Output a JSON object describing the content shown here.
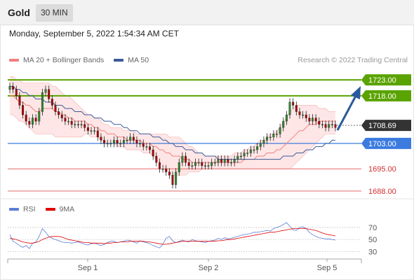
{
  "header": {
    "symbol": "Gold",
    "timeframe": "30 MIN"
  },
  "datetime": "Monday, September 5, 2022 1:54:34 AM CET",
  "legend": {
    "items": [
      {
        "label": "MA 20 + Bollinger Bands",
        "color": "#f08080"
      },
      {
        "label": "MA 50",
        "color": "#3a5a9a"
      }
    ],
    "credit": "Research © 2022 Trading Central"
  },
  "rsi_legend": {
    "items": [
      {
        "label": "RSI",
        "color": "#5b7fd6"
      },
      {
        "label": "9MA",
        "color": "#e00000"
      }
    ]
  },
  "colors": {
    "up_candle": "#2e8b2e",
    "down_candle": "#b00000",
    "resistance": "#5aa300",
    "support": "#3b7be0",
    "minor_support": "#e05050",
    "bollinger_fill": "#ffd6d6",
    "ma20": "#f08080",
    "ma50": "#3a5a9a",
    "arrow": "#2a5a9a",
    "current_price_bg": "#333333"
  },
  "chart_data": [
    {
      "type": "candlestick",
      "ylim": [
        1686,
        1727
      ],
      "levels": [
        {
          "value": 1723.0,
          "label": "1723.00",
          "kind": "resistance"
        },
        {
          "value": 1718.0,
          "label": "1718.00",
          "kind": "resistance"
        },
        {
          "value": 1708.69,
          "label": "1708.69",
          "kind": "current"
        },
        {
          "value": 1703.0,
          "label": "1703.00",
          "kind": "support"
        },
        {
          "value": 1695.0,
          "label": "1695.00",
          "kind": "minor_support"
        },
        {
          "value": 1688.0,
          "label": "1688.00",
          "kind": "minor_support"
        }
      ],
      "x_ticks": [
        "Sep 1",
        "Sep 2",
        "Sep 5"
      ],
      "close": [
        1721,
        1720,
        1718,
        1715,
        1712,
        1710,
        1709,
        1711,
        1710,
        1713,
        1719,
        1720,
        1717,
        1715,
        1713,
        1712,
        1711,
        1710,
        1710,
        1709,
        1709,
        1709,
        1709,
        1708,
        1707,
        1707,
        1707,
        1705,
        1704,
        1703,
        1703,
        1703,
        1704,
        1703,
        1703,
        1704,
        1704,
        1705,
        1704,
        1703,
        1703,
        1702,
        1702,
        1701,
        1699,
        1697,
        1695,
        1695,
        1694,
        1693,
        1690,
        1694,
        1697,
        1699,
        1697,
        1696,
        1696,
        1697,
        1697,
        1696,
        1696,
        1696,
        1697,
        1697,
        1698,
        1697,
        1698,
        1697,
        1697,
        1698,
        1699,
        1699,
        1700,
        1700,
        1701,
        1701,
        1702,
        1703,
        1704,
        1705,
        1705,
        1706,
        1706,
        1708,
        1710,
        1712,
        1716,
        1715,
        1713,
        1712,
        1712,
        1711,
        1710,
        1711,
        1710,
        1709,
        1709,
        1708,
        1709,
        1709,
        1708
      ],
      "ma20": [
        1718,
        1718,
        1717,
        1716,
        1716,
        1715,
        1715,
        1714,
        1713,
        1713,
        1714,
        1714,
        1714,
        1714,
        1713,
        1713,
        1712,
        1712,
        1711,
        1711,
        1710,
        1710,
        1710,
        1710,
        1709,
        1709,
        1708,
        1708,
        1707,
        1707,
        1706,
        1706,
        1706,
        1705,
        1705,
        1705,
        1704,
        1704,
        1704,
        1704,
        1704,
        1703,
        1703,
        1703,
        1702,
        1702,
        1701,
        1701,
        1700,
        1700,
        1699,
        1699,
        1699,
        1698,
        1698,
        1698,
        1697,
        1697,
        1697,
        1697,
        1697,
        1697,
        1697,
        1697,
        1697,
        1697,
        1697,
        1697,
        1697,
        1697,
        1697,
        1697,
        1698,
        1698,
        1698,
        1698,
        1699,
        1699,
        1699,
        1700,
        1700,
        1700,
        1701,
        1701,
        1702,
        1703,
        1704,
        1705,
        1706,
        1707,
        1707,
        1708,
        1709,
        1709,
        1709,
        1710,
        1710,
        1710,
        1710,
        1710,
        1710
      ],
      "bb_upper": [
        1724,
        1724,
        1723,
        1723,
        1722,
        1722,
        1722,
        1722,
        1722,
        1722,
        1722,
        1722,
        1722,
        1721,
        1721,
        1720,
        1719,
        1718,
        1718,
        1717,
        1716,
        1715,
        1714,
        1713,
        1712,
        1712,
        1711,
        1711,
        1710,
        1709,
        1709,
        1708,
        1708,
        1708,
        1708,
        1707,
        1707,
        1707,
        1707,
        1706,
        1706,
        1706,
        1706,
        1706,
        1706,
        1706,
        1706,
        1706,
        1706,
        1705,
        1705,
        1705,
        1705,
        1704,
        1703,
        1702,
        1702,
        1701,
        1700,
        1700,
        1699,
        1699,
        1699,
        1699,
        1699,
        1699,
        1699,
        1699,
        1699,
        1700,
        1700,
        1700,
        1701,
        1701,
        1702,
        1702,
        1703,
        1704,
        1704,
        1705,
        1706,
        1706,
        1707,
        1708,
        1710,
        1711,
        1713,
        1714,
        1715,
        1715,
        1715,
        1715,
        1715,
        1715,
        1715,
        1714,
        1714,
        1714,
        1713,
        1713,
        1713
      ],
      "bb_lower": [
        1712,
        1712,
        1711,
        1710,
        1710,
        1709,
        1708,
        1707,
        1706,
        1706,
        1706,
        1706,
        1706,
        1706,
        1705,
        1705,
        1705,
        1705,
        1705,
        1705,
        1705,
        1705,
        1705,
        1706,
        1706,
        1705,
        1705,
        1705,
        1704,
        1704,
        1703,
        1703,
        1703,
        1702,
        1702,
        1702,
        1701,
        1701,
        1701,
        1701,
        1701,
        1700,
        1700,
        1700,
        1699,
        1698,
        1697,
        1696,
        1695,
        1694,
        1693,
        1693,
        1693,
        1693,
        1693,
        1694,
        1694,
        1694,
        1694,
        1695,
        1695,
        1695,
        1695,
        1695,
        1695,
        1695,
        1695,
        1695,
        1695,
        1695,
        1695,
        1695,
        1695,
        1695,
        1695,
        1695,
        1695,
        1695,
        1695,
        1695,
        1695,
        1695,
        1695,
        1695,
        1695,
        1695,
        1695,
        1696,
        1697,
        1698,
        1699,
        1700,
        1701,
        1702,
        1703,
        1704,
        1705,
        1706,
        1706,
        1706,
        1706
      ],
      "ma50": [
        1721,
        1721,
        1720,
        1720,
        1719,
        1719,
        1718,
        1718,
        1717,
        1717,
        1717,
        1716,
        1716,
        1716,
        1715,
        1715,
        1715,
        1714,
        1714,
        1714,
        1713,
        1713,
        1713,
        1712,
        1712,
        1712,
        1711,
        1711,
        1711,
        1710,
        1710,
        1710,
        1709,
        1709,
        1709,
        1708,
        1708,
        1707,
        1707,
        1707,
        1706,
        1706,
        1706,
        1706,
        1705,
        1705,
        1705,
        1704,
        1704,
        1703,
        1703,
        1702,
        1702,
        1702,
        1701,
        1701,
        1701,
        1700,
        1700,
        1700,
        1699,
        1699,
        1699,
        1699,
        1698,
        1698,
        1698,
        1698,
        1698,
        1698,
        1698,
        1698,
        1698,
        1698,
        1698,
        1698,
        1698,
        1698,
        1698,
        1698,
        1698,
        1698,
        1698,
        1698,
        1699,
        1699,
        1699,
        1699,
        1700,
        1700,
        1700,
        1701,
        1701,
        1701,
        1702,
        1702,
        1702,
        1703,
        1703,
        1704,
        1704
      ]
    },
    {
      "type": "line",
      "y_ticks": [
        70,
        50,
        30
      ],
      "ylim": [
        20,
        85
      ],
      "series": [
        {
          "name": "RSI",
          "values": [
            58,
            47,
            44,
            40,
            37,
            40,
            35,
            44,
            46,
            55,
            68,
            62,
            55,
            52,
            50,
            48,
            46,
            45,
            45,
            44,
            45,
            46,
            44,
            42,
            41,
            43,
            44,
            42,
            40,
            42,
            45,
            47,
            47,
            45,
            46,
            47,
            49,
            48,
            46,
            44,
            48,
            46,
            45,
            43,
            40,
            38,
            36,
            42,
            52,
            55,
            48,
            45,
            47,
            49,
            47,
            46,
            50,
            48,
            47,
            46,
            45,
            47,
            48,
            49,
            52,
            50,
            53,
            51,
            52,
            54,
            55,
            57,
            58,
            59,
            60,
            62,
            62,
            63,
            64,
            65,
            64,
            68,
            70,
            72,
            75,
            78,
            72,
            66,
            65,
            70,
            71,
            68,
            62,
            58,
            55,
            53,
            52,
            51,
            51,
            50,
            49
          ]
        },
        {
          "name": "9MA",
          "values": [
            52,
            51,
            50,
            48,
            46,
            45,
            44,
            44,
            45,
            47,
            50,
            52,
            54,
            55,
            55,
            55,
            54,
            52,
            50,
            49,
            48,
            47,
            46,
            45,
            45,
            44,
            44,
            44,
            44,
            43,
            44,
            44,
            45,
            45,
            46,
            46,
            46,
            47,
            47,
            47,
            47,
            47,
            46,
            46,
            45,
            44,
            43,
            42,
            42,
            43,
            44,
            45,
            46,
            47,
            47,
            47,
            47,
            47,
            47,
            47,
            47,
            47,
            47,
            47,
            48,
            48,
            49,
            50,
            50,
            51,
            52,
            53,
            54,
            55,
            56,
            57,
            58,
            59,
            60,
            61,
            62,
            62,
            63,
            64,
            65,
            66,
            67,
            68,
            68,
            68,
            68,
            68,
            67,
            66,
            65,
            63,
            61,
            59,
            58,
            57,
            56
          ]
        }
      ]
    }
  ]
}
